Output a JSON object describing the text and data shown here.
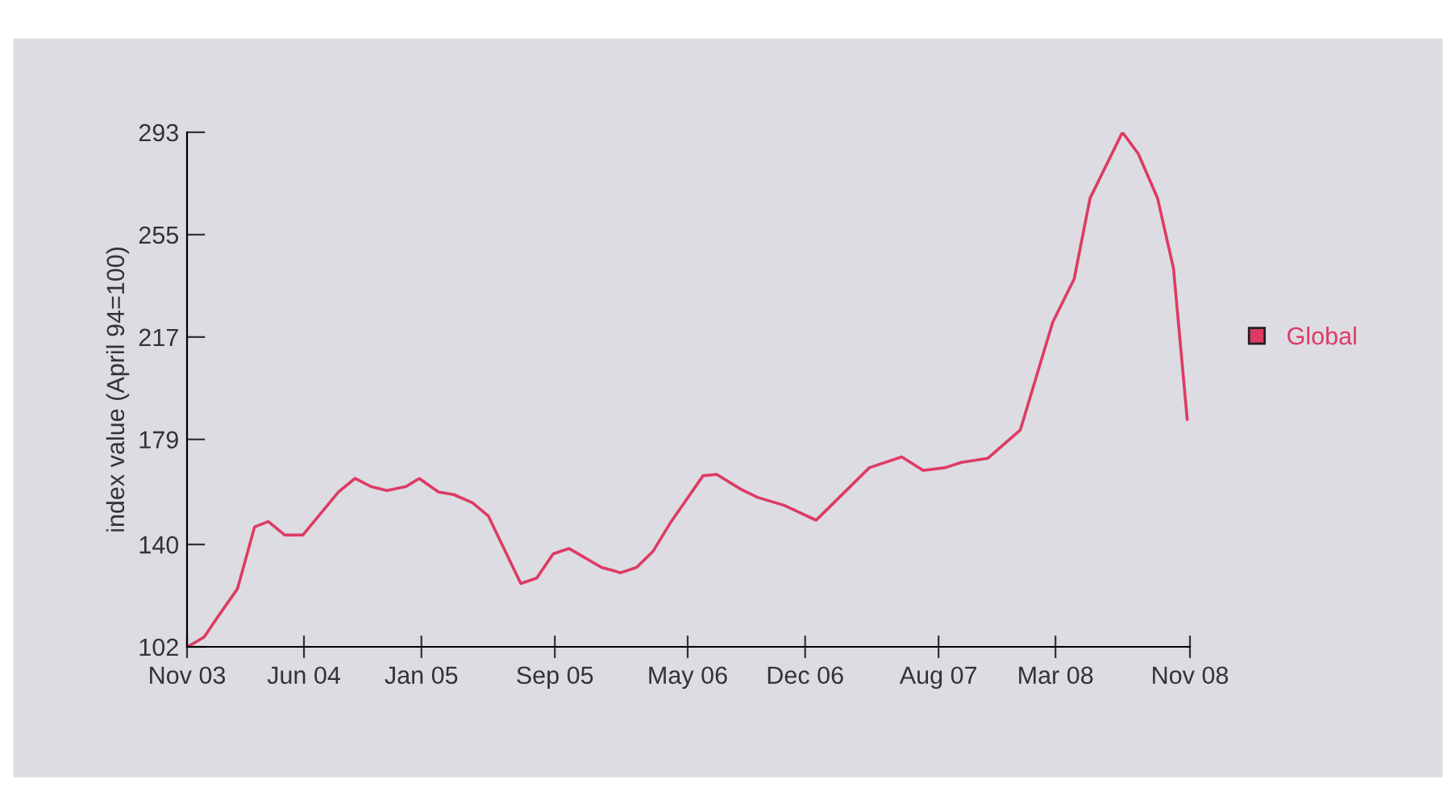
{
  "chart_data": {
    "type": "line",
    "ylabel": "index value (April 94=100)",
    "x": [
      "2003-11-02",
      "2003-12-02",
      "2004-01-01",
      "2004-02-01",
      "2004-03-03",
      "2004-03-28",
      "2004-04-27",
      "2004-05-30",
      "2004-08-03",
      "2004-09-02",
      "2004-10-01",
      "2004-10-30",
      "2004-12-04",
      "2004-12-28",
      "2005-02-01",
      "2005-03-01",
      "2005-04-04",
      "2005-05-03",
      "2005-07-01",
      "2005-07-30",
      "2005-08-29",
      "2005-09-27",
      "2005-11-25",
      "2005-12-30",
      "2006-01-28",
      "2006-02-27",
      "2006-04-01",
      "2006-05-29",
      "2006-06-23",
      "2006-08-06",
      "2006-09-05",
      "2006-10-24",
      "2006-12-21",
      "2007-03-28",
      "2007-05-26",
      "2007-07-04",
      "2007-08-13",
      "2007-09-12",
      "2007-10-30",
      "2007-12-28",
      "2008-02-25",
      "2008-04-04",
      "2008-05-03",
      "2008-07-01",
      "2008-07-30",
      "2008-09-03",
      "2008-10-02",
      "2008-10-27"
    ],
    "series": [
      {
        "name": "Global",
        "color": "#de3a64",
        "values": [
          102,
          105.6,
          114.6,
          123.6,
          146.5,
          148.5,
          143.5,
          143.5,
          159.5,
          164.5,
          161.5,
          160,
          161.5,
          164.5,
          159.5,
          158.5,
          155.5,
          150.5,
          125.5,
          127.5,
          136.5,
          138.5,
          131.5,
          129.5,
          131.5,
          137.5,
          148.5,
          165.5,
          166,
          160.5,
          157.5,
          154.5,
          149,
          168.5,
          172.5,
          167.5,
          168.5,
          170.5,
          172,
          182.5,
          222.5,
          238.5,
          268.5,
          293,
          285,
          268.5,
          242.5,
          186.5
        ]
      }
    ],
    "xlim": [
      "2003-11",
      "2008-11"
    ],
    "xticks": [
      {
        "value": "2003-11",
        "label": "Nov 03"
      },
      {
        "value": "2004-06",
        "label": "Jun 04"
      },
      {
        "value": "2005-01",
        "label": "Jan 05"
      },
      {
        "value": "2005-09",
        "label": "Sep 05"
      },
      {
        "value": "2006-05",
        "label": "May 06"
      },
      {
        "value": "2006-12",
        "label": "Dec 06"
      },
      {
        "value": "2007-08",
        "label": "Aug 07"
      },
      {
        "value": "2008-03",
        "label": "Mar 08"
      },
      {
        "value": "2008-11",
        "label": "Nov 08"
      }
    ],
    "ylim": [
      102,
      293
    ],
    "yticks": [
      102,
      140,
      179,
      217,
      255,
      293
    ],
    "grid": false,
    "legend": "right",
    "marker": "none",
    "line_style": "solid"
  }
}
